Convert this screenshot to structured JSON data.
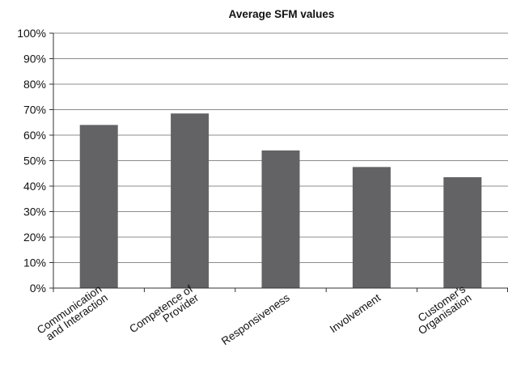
{
  "chart_data": {
    "type": "bar",
    "title": "Average SFM values",
    "xlabel": "",
    "ylabel": "",
    "categories": [
      [
        "Communication",
        "and Interaction"
      ],
      [
        "Competence of",
        "Provider"
      ],
      [
        "Responsiveness"
      ],
      [
        "Involvement"
      ],
      [
        "Customer's",
        "Organisation"
      ]
    ],
    "values": [
      64,
      68.5,
      54,
      47.5,
      43.5
    ],
    "ylim": [
      0,
      100
    ],
    "yticks": [
      "0%",
      "10%",
      "20%",
      "30%",
      "40%",
      "50%",
      "60%",
      "70%",
      "80%",
      "90%",
      "100%"
    ],
    "grid": true,
    "legend": "none",
    "bar_color": "#636366",
    "grid_color": "#8c8c8c",
    "axis_color": "#333333"
  }
}
